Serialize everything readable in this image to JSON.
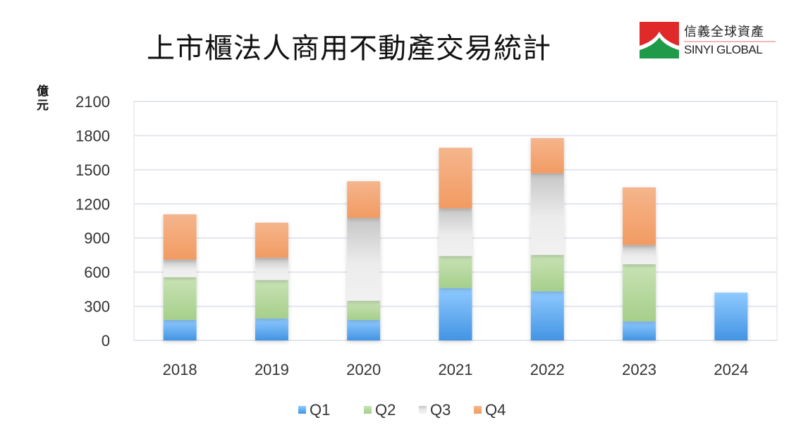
{
  "chart_data": {
    "type": "bar",
    "stacked": true,
    "title": "上市櫃法人商用不動產交易統計",
    "ylabel": "億元",
    "xlabel": "",
    "ylim": [
      0,
      2100
    ],
    "yticks": [
      0,
      300,
      600,
      900,
      1200,
      1500,
      1800,
      2100
    ],
    "grid": true,
    "legend_position": "bottom",
    "categories": [
      "2018",
      "2019",
      "2020",
      "2021",
      "2022",
      "2023",
      "2024"
    ],
    "series": [
      {
        "name": "Q1",
        "color": "#4a9be6",
        "values": [
          180,
          194,
          180,
          461,
          432,
          167,
          420
        ]
      },
      {
        "name": "Q2",
        "color": "#a9d08e",
        "values": [
          376,
          337,
          169,
          281,
          320,
          503,
          null
        ]
      },
      {
        "name": "Q3",
        "color": "#d0d0d0",
        "values": [
          155,
          196,
          728,
          419,
          717,
          169,
          null
        ]
      },
      {
        "name": "Q4",
        "color": "#f4a46e",
        "values": [
          397,
          308,
          322,
          532,
          310,
          506,
          null
        ]
      }
    ]
  },
  "logo": {
    "chinese": "信義全球資產",
    "english": "SINYI GLOBAL"
  }
}
